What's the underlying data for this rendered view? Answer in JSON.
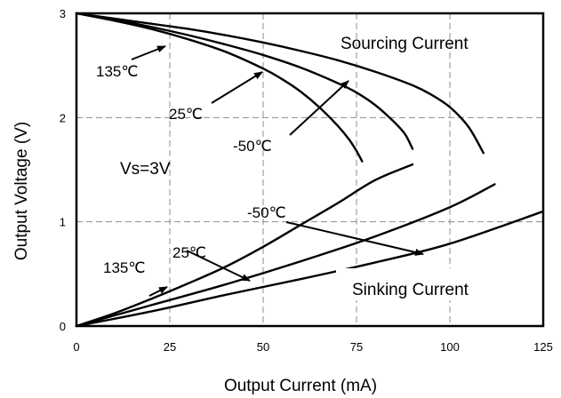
{
  "chart_data": {
    "type": "line",
    "title": "",
    "xlabel": "Output Current (mA)",
    "ylabel": "Output Voltage (V)",
    "xlim": [
      0,
      125
    ],
    "ylim": [
      0,
      3
    ],
    "x_ticks": [
      "0",
      "25",
      "50",
      "75",
      "100",
      "125"
    ],
    "y_ticks": [
      "0",
      "1",
      "2",
      "3"
    ],
    "grid": true,
    "legend": "none",
    "annotations": {
      "sourcing": "Sourcing Current",
      "sinking": "Sinking Current",
      "vs": "Vs=3V",
      "src_135": "135℃",
      "src_25": "25℃",
      "src_m50": "-50℃",
      "snk_135": "135℃",
      "snk_25": "25℃",
      "snk_m50": "-50℃"
    },
    "series": [
      {
        "group": "sourcing",
        "temperature": "135℃",
        "x": [
          0,
          10,
          20,
          30,
          40,
          50,
          55,
          60,
          65,
          70,
          73,
          75,
          76.5
        ],
        "y": [
          3.0,
          2.93,
          2.85,
          2.75,
          2.63,
          2.47,
          2.37,
          2.25,
          2.1,
          1.92,
          1.79,
          1.68,
          1.58
        ]
      },
      {
        "group": "sourcing",
        "temperature": "25℃",
        "x": [
          0,
          10,
          20,
          30,
          40,
          50,
          60,
          70,
          75,
          80,
          85,
          88,
          90
        ],
        "y": [
          3.0,
          2.94,
          2.87,
          2.79,
          2.7,
          2.6,
          2.48,
          2.33,
          2.24,
          2.12,
          1.96,
          1.84,
          1.7
        ]
      },
      {
        "group": "sourcing",
        "temperature": "-50℃",
        "x": [
          0,
          10,
          20,
          30,
          40,
          50,
          60,
          70,
          80,
          90,
          95,
          100,
          105,
          109
        ],
        "y": [
          3.0,
          2.95,
          2.9,
          2.85,
          2.79,
          2.72,
          2.64,
          2.55,
          2.44,
          2.31,
          2.22,
          2.1,
          1.91,
          1.66
        ]
      },
      {
        "group": "sinking",
        "temperature": "135℃",
        "x": [
          0,
          10,
          20,
          30,
          40,
          50,
          60,
          70,
          80,
          90
        ],
        "y": [
          0,
          0.12,
          0.26,
          0.41,
          0.57,
          0.76,
          0.97,
          1.18,
          1.4,
          1.55
        ]
      },
      {
        "group": "sinking",
        "temperature": "25℃",
        "x": [
          0,
          20,
          40,
          60,
          80,
          100,
          112
        ],
        "y": [
          0,
          0.2,
          0.4,
          0.62,
          0.86,
          1.14,
          1.36
        ]
      },
      {
        "group": "sinking",
        "temperature": "-50℃",
        "x": [
          0,
          20,
          40,
          60,
          80,
          100,
          125
        ],
        "y": [
          0,
          0.14,
          0.3,
          0.45,
          0.61,
          0.79,
          1.1
        ]
      }
    ]
  }
}
